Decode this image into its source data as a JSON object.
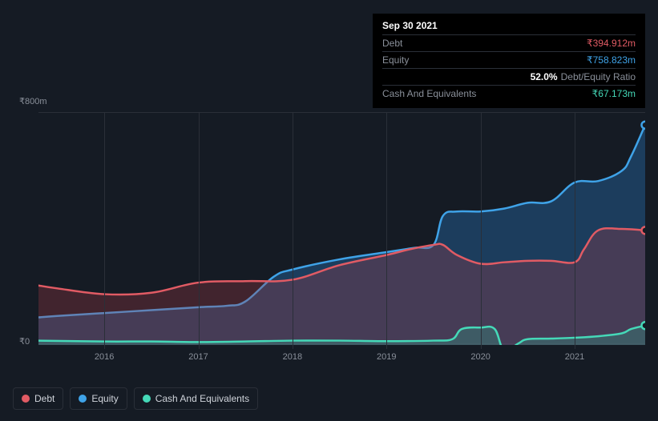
{
  "background_color": "#151b24",
  "tooltip": {
    "date": "Sep 30 2021",
    "rows": [
      {
        "label": "Debt",
        "value": "₹394.912m",
        "color": "#e15b64"
      },
      {
        "label": "Equity",
        "value": "₹758.823m",
        "color": "#3fa3e8"
      },
      {
        "label": "",
        "pct": "52.0%",
        "ratio_label": "Debt/Equity Ratio"
      },
      {
        "label": "Cash And Equivalents",
        "value": "₹67.173m",
        "color": "#45d9b8"
      }
    ],
    "bg": "#000000",
    "border": "#2a2f38",
    "label_color": "#8a909a"
  },
  "chart": {
    "type": "area",
    "currency_prefix": "₹",
    "y_axis": {
      "min": 0,
      "max": 800,
      "ticks": [
        {
          "v": 800,
          "label": "₹800m"
        },
        {
          "v": 0,
          "label": "₹0"
        }
      ],
      "label_color": "#8a909a",
      "label_fontsize": 11
    },
    "x_axis": {
      "min": 2015.3,
      "max": 2021.75,
      "ticks": [
        2016,
        2017,
        2018,
        2019,
        2020,
        2021
      ],
      "label_color": "#8a909a",
      "label_fontsize": 11
    },
    "grid_color": "#2a2f38",
    "plot_bg": "transparent",
    "series": [
      {
        "name": "Equity",
        "color": "#3fa3e8",
        "fill": "rgba(35,90,140,0.55)",
        "line_width": 2.5,
        "end_marker": true,
        "points": [
          [
            2015.3,
            95
          ],
          [
            2015.5,
            100
          ],
          [
            2016,
            110
          ],
          [
            2016.5,
            120
          ],
          [
            2017,
            130
          ],
          [
            2017.3,
            135
          ],
          [
            2017.5,
            150
          ],
          [
            2017.8,
            235
          ],
          [
            2018,
            260
          ],
          [
            2018.5,
            295
          ],
          [
            2019,
            320
          ],
          [
            2019.3,
            335
          ],
          [
            2019.5,
            345
          ],
          [
            2019.6,
            445
          ],
          [
            2019.75,
            460
          ],
          [
            2020,
            460
          ],
          [
            2020.25,
            470
          ],
          [
            2020.5,
            490
          ],
          [
            2020.75,
            495
          ],
          [
            2021,
            560
          ],
          [
            2021.25,
            565
          ],
          [
            2021.5,
            600
          ],
          [
            2021.6,
            650
          ],
          [
            2021.75,
            758
          ]
        ]
      },
      {
        "name": "Debt",
        "color": "#e15b64",
        "fill": "rgba(170,60,70,0.30)",
        "line_width": 2.5,
        "end_marker": true,
        "points": [
          [
            2015.3,
            205
          ],
          [
            2015.5,
            195
          ],
          [
            2016,
            175
          ],
          [
            2016.5,
            180
          ],
          [
            2017,
            215
          ],
          [
            2017.5,
            220
          ],
          [
            2018,
            225
          ],
          [
            2018.5,
            275
          ],
          [
            2019,
            310
          ],
          [
            2019.25,
            330
          ],
          [
            2019.5,
            345
          ],
          [
            2019.6,
            345
          ],
          [
            2019.75,
            310
          ],
          [
            2020,
            280
          ],
          [
            2020.25,
            285
          ],
          [
            2020.5,
            290
          ],
          [
            2020.75,
            290
          ],
          [
            2021,
            285
          ],
          [
            2021.1,
            330
          ],
          [
            2021.25,
            395
          ],
          [
            2021.5,
            400
          ],
          [
            2021.75,
            395
          ]
        ]
      },
      {
        "name": "Cash And Equivalents",
        "color": "#45d9b8",
        "fill": "rgba(50,150,130,0.35)",
        "line_width": 2.5,
        "end_marker": true,
        "points": [
          [
            2015.3,
            15
          ],
          [
            2016,
            12
          ],
          [
            2016.5,
            12
          ],
          [
            2017,
            10
          ],
          [
            2017.5,
            12
          ],
          [
            2018,
            15
          ],
          [
            2018.5,
            15
          ],
          [
            2019,
            13
          ],
          [
            2019.5,
            15
          ],
          [
            2019.7,
            20
          ],
          [
            2019.8,
            55
          ],
          [
            2020,
            60
          ],
          [
            2020.15,
            55
          ],
          [
            2020.25,
            -20
          ],
          [
            2020.4,
            5
          ],
          [
            2020.5,
            20
          ],
          [
            2020.75,
            22
          ],
          [
            2021,
            25
          ],
          [
            2021.25,
            30
          ],
          [
            2021.5,
            40
          ],
          [
            2021.6,
            55
          ],
          [
            2021.75,
            67
          ]
        ]
      }
    ]
  },
  "legend": {
    "items": [
      {
        "label": "Debt",
        "color": "#e15b64"
      },
      {
        "label": "Equity",
        "color": "#3fa3e8"
      },
      {
        "label": "Cash And Equivalents",
        "color": "#45d9b8"
      }
    ],
    "border_color": "#2a2f38",
    "label_color": "#cfd3da",
    "label_fontsize": 12
  }
}
